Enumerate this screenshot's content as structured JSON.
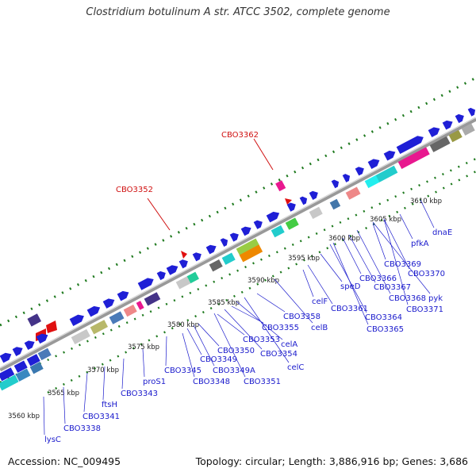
{
  "header": {
    "title": "Clostridium botulinum A str. ATCC 3502, complete genome"
  },
  "footer": {
    "accession": "Accession: NC_009495",
    "stats": "Topology: circular; Length: 3,886,916 bp; Genes: 3,686"
  },
  "colors": {
    "gene_forward": "#1f1fd6",
    "gene_reverse": "#1f1fd6",
    "backbone": "#909090",
    "highlight": "#e8188f",
    "marker": "#e01010",
    "tick": "#1f7a1f",
    "label": "#1a1acc",
    "label_highlight": "#d01010"
  },
  "scale_labels": [
    "3560 kbp",
    "3565 kbp",
    "3570 kbp",
    "3575 kbp",
    "3580 kbp",
    "3585 kbp",
    "3590 kbp",
    "3595 kbp",
    "3600 kbp",
    "3605 kbp",
    "3610 kbp"
  ],
  "highlighted_genes": [
    "CBO3352",
    "CBO3362"
  ],
  "gene_labels": [
    "lysC",
    "CBO3338",
    "CBO3341",
    "ftsH",
    "CBO3343",
    "proS1",
    "CBO3345",
    "CBO3348",
    "CBO3349",
    "CBO3349A",
    "CBO3350",
    "CBO3351",
    "CBO3353",
    "CBO3354",
    "CBO3355",
    "celA",
    "celC",
    "CBO3358",
    "celB",
    "celF",
    "CBO3361",
    "speD",
    "CBO3364",
    "CBO3365",
    "CBO3366",
    "CBO3367",
    "CBO3368",
    "pyk",
    "CBO3369",
    "CBO3370",
    "CBO3371",
    "pfkA",
    "dnaE"
  ]
}
